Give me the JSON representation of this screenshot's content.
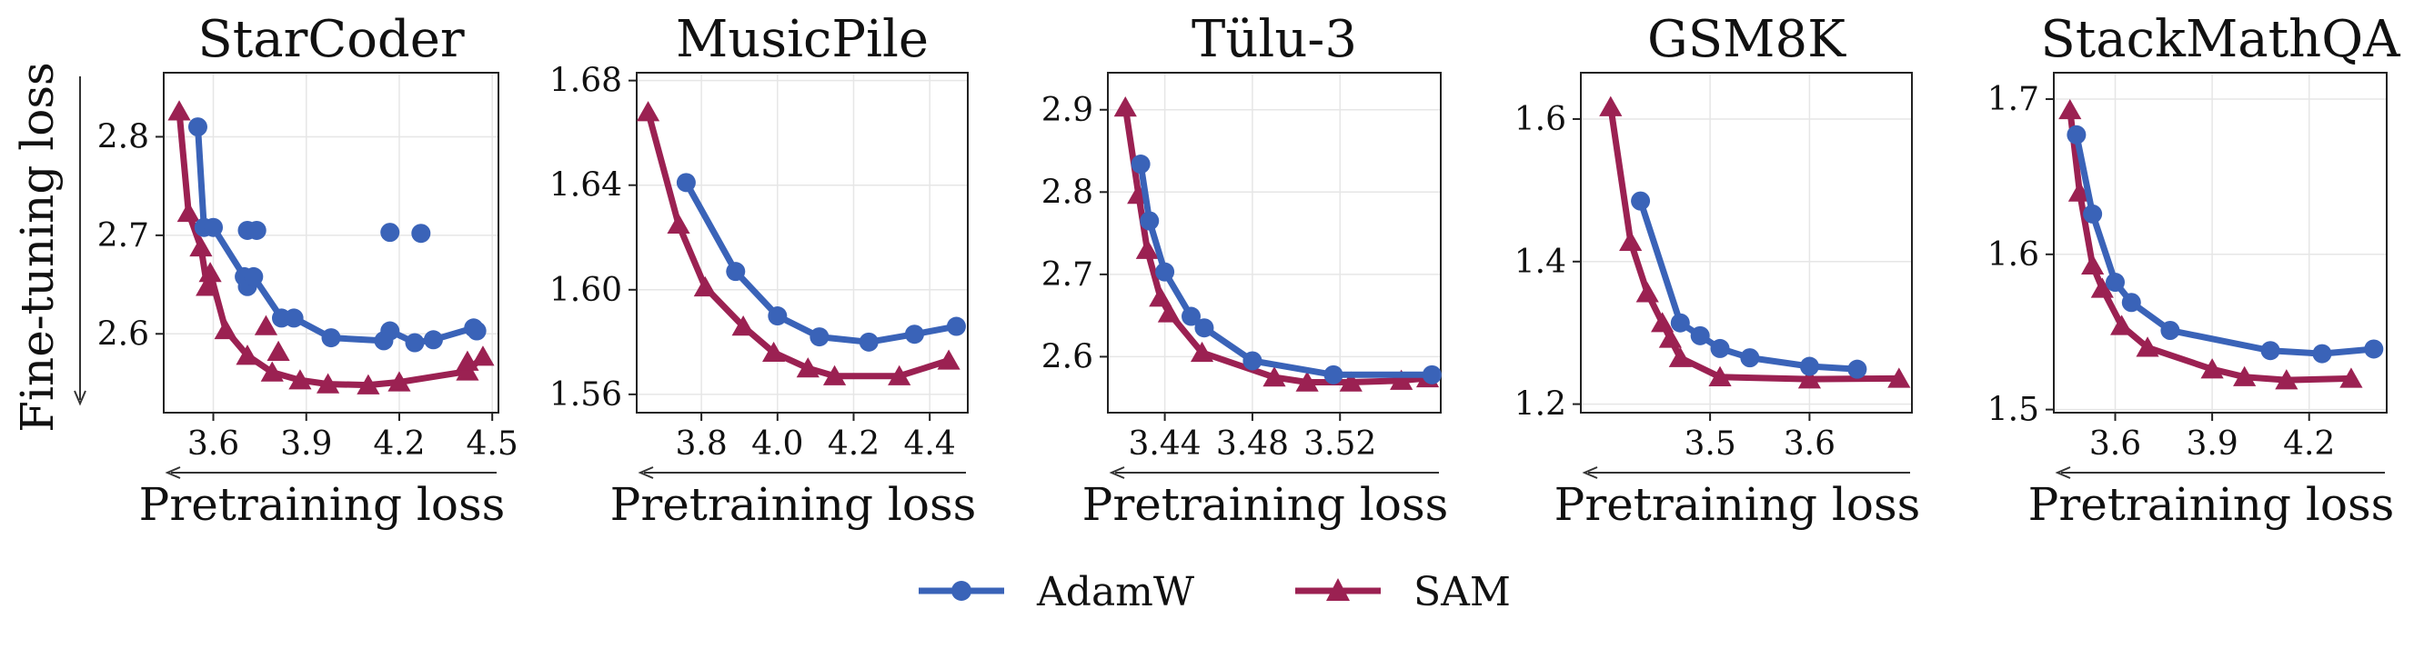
{
  "figure": {
    "ylabel": "Fine-tuning loss",
    "colors": {
      "AdamW": "#3a63b8",
      "SAM": "#9b2152"
    }
  },
  "legend": {
    "items": [
      {
        "name": "AdamW",
        "marker": "circle"
      },
      {
        "name": "SAM",
        "marker": "triangle"
      }
    ]
  },
  "chart_data": [
    {
      "type": "line",
      "title": "StarCoder",
      "xlabel": "Pretraining loss",
      "xlim": [
        3.44,
        4.52
      ],
      "ylim": [
        2.52,
        2.865
      ],
      "xticks": [
        3.6,
        3.9,
        4.2,
        4.5
      ],
      "xtick_labels": [
        "3.6",
        "3.9",
        "4.2",
        "4.5"
      ],
      "yticks": [
        2.6,
        2.7,
        2.8
      ],
      "ytick_labels": [
        "2.6",
        "2.7",
        "2.8"
      ],
      "series": [
        {
          "name": "AdamW",
          "points": [
            [
              3.55,
              2.81
            ],
            [
              3.57,
              2.708
            ],
            [
              3.6,
              2.708
            ],
            [
              3.7,
              2.658
            ],
            [
              3.71,
              2.648
            ],
            [
              3.73,
              2.658
            ],
            [
              3.82,
              2.616
            ],
            [
              3.86,
              2.616
            ],
            [
              3.98,
              2.596
            ],
            [
              4.15,
              2.593
            ],
            [
              4.17,
              2.603
            ],
            [
              4.25,
              2.591
            ],
            [
              4.31,
              2.594
            ],
            [
              4.44,
              2.606
            ],
            [
              4.45,
              2.603
            ]
          ]
        },
        {
          "name": "SAM",
          "points": [
            [
              3.49,
              2.826
            ],
            [
              3.52,
              2.723
            ],
            [
              3.56,
              2.688
            ],
            [
              3.58,
              2.648
            ],
            [
              3.59,
              2.662
            ],
            [
              3.64,
              2.604
            ],
            [
              3.71,
              2.578
            ],
            [
              3.79,
              2.561
            ],
            [
              3.88,
              2.553
            ],
            [
              3.97,
              2.549
            ],
            [
              4.1,
              2.548
            ],
            [
              4.2,
              2.551
            ],
            [
              4.42,
              2.562
            ],
            [
              4.47,
              2.577
            ]
          ]
        }
      ],
      "extra_points": {
        "AdamW": [
          [
            3.71,
            2.705
          ],
          [
            3.74,
            2.705
          ],
          [
            4.17,
            2.703
          ],
          [
            4.27,
            2.702
          ]
        ],
        "SAM": [
          [
            3.77,
            2.608
          ],
          [
            3.81,
            2.582
          ],
          [
            4.42,
            2.572
          ]
        ]
      }
    },
    {
      "type": "line",
      "title": "MusicPile",
      "xlabel": "Pretraining loss",
      "xlim": [
        3.63,
        4.5
      ],
      "ylim": [
        1.553,
        1.683
      ],
      "xticks": [
        3.8,
        4.0,
        4.2,
        4.4
      ],
      "xtick_labels": [
        "3.8",
        "4.0",
        "4.2",
        "4.4"
      ],
      "yticks": [
        1.56,
        1.6,
        1.64,
        1.68
      ],
      "ytick_labels": [
        "1.56",
        "1.60",
        "1.64",
        "1.68"
      ],
      "series": [
        {
          "name": "AdamW",
          "points": [
            [
              3.76,
              1.641
            ],
            [
              3.89,
              1.607
            ],
            [
              4.0,
              1.59
            ],
            [
              4.11,
              1.582
            ],
            [
              4.24,
              1.58
            ],
            [
              4.36,
              1.583
            ],
            [
              4.47,
              1.586
            ]
          ]
        },
        {
          "name": "SAM",
          "points": [
            [
              3.66,
              1.668
            ],
            [
              3.74,
              1.625
            ],
            [
              3.81,
              1.601
            ],
            [
              3.91,
              1.586
            ],
            [
              3.99,
              1.576
            ],
            [
              4.08,
              1.57
            ],
            [
              4.15,
              1.567
            ],
            [
              4.32,
              1.567
            ],
            [
              4.45,
              1.573
            ]
          ]
        }
      ]
    },
    {
      "type": "line",
      "title": "Tülu-3",
      "xlabel": "Pretraining loss",
      "xlim": [
        3.414,
        3.566
      ],
      "ylim": [
        2.532,
        2.945
      ],
      "xticks": [
        3.44,
        3.48,
        3.52
      ],
      "xtick_labels": [
        "3.44",
        "3.48",
        "3.52"
      ],
      "yticks": [
        2.6,
        2.7,
        2.8,
        2.9
      ],
      "ytick_labels": [
        "2.6",
        "2.7",
        "2.8",
        "2.9"
      ],
      "series": [
        {
          "name": "AdamW",
          "points": [
            [
              3.429,
              2.834
            ],
            [
              3.433,
              2.765
            ],
            [
              3.44,
              2.703
            ],
            [
              3.452,
              2.649
            ],
            [
              3.458,
              2.635
            ],
            [
              3.48,
              2.595
            ],
            [
              3.517,
              2.578
            ],
            [
              3.562,
              2.578
            ]
          ]
        },
        {
          "name": "SAM",
          "points": [
            [
              3.422,
              2.903
            ],
            [
              3.428,
              2.797
            ],
            [
              3.432,
              2.73
            ],
            [
              3.438,
              2.672
            ],
            [
              3.442,
              2.653
            ],
            [
              3.457,
              2.605
            ],
            [
              3.49,
              2.575
            ],
            [
              3.505,
              2.569
            ],
            [
              3.525,
              2.569
            ],
            [
              3.548,
              2.571
            ],
            [
              3.56,
              2.574
            ]
          ]
        }
      ]
    },
    {
      "type": "line",
      "title": "GSM8K",
      "xlabel": "Pretraining loss",
      "xlim": [
        3.37,
        3.703
      ],
      "ylim": [
        1.188,
        1.665
      ],
      "xticks": [
        3.5,
        3.6
      ],
      "xtick_labels": [
        "3.5",
        "3.6"
      ],
      "yticks": [
        1.2,
        1.4,
        1.6
      ],
      "ytick_labels": [
        "1.2",
        "1.4",
        "1.6"
      ],
      "series": [
        {
          "name": "AdamW",
          "points": [
            [
              3.43,
              1.485
            ],
            [
              3.47,
              1.314
            ],
            [
              3.49,
              1.296
            ],
            [
              3.51,
              1.278
            ],
            [
              3.54,
              1.265
            ],
            [
              3.6,
              1.253
            ],
            [
              3.648,
              1.249
            ]
          ]
        },
        {
          "name": "SAM",
          "points": [
            [
              3.4,
              1.617
            ],
            [
              3.42,
              1.428
            ],
            [
              3.437,
              1.356
            ],
            [
              3.452,
              1.314
            ],
            [
              3.46,
              1.292
            ],
            [
              3.47,
              1.265
            ],
            [
              3.51,
              1.238
            ],
            [
              3.6,
              1.235
            ],
            [
              3.69,
              1.236
            ]
          ]
        }
      ]
    },
    {
      "type": "line",
      "title": "StackMathQA",
      "xlabel": "Pretraining loss",
      "xlim": [
        3.41,
        4.44
      ],
      "ylim": [
        1.498,
        1.717
      ],
      "xticks": [
        3.6,
        3.9,
        4.2
      ],
      "xtick_labels": [
        "3.6",
        "3.9",
        "4.2"
      ],
      "yticks": [
        1.5,
        1.6,
        1.7
      ],
      "ytick_labels": [
        "1.5",
        "1.6",
        "1.7"
      ],
      "series": [
        {
          "name": "AdamW",
          "points": [
            [
              3.48,
              1.677
            ],
            [
              3.53,
              1.626
            ],
            [
              3.6,
              1.582
            ],
            [
              3.65,
              1.569
            ],
            [
              3.77,
              1.551
            ],
            [
              4.08,
              1.538
            ],
            [
              4.24,
              1.536
            ],
            [
              4.4,
              1.539
            ]
          ]
        },
        {
          "name": "SAM",
          "points": [
            [
              3.46,
              1.693
            ],
            [
              3.49,
              1.64
            ],
            [
              3.53,
              1.593
            ],
            [
              3.56,
              1.578
            ],
            [
              3.62,
              1.554
            ],
            [
              3.7,
              1.54
            ],
            [
              3.9,
              1.526
            ],
            [
              4.0,
              1.521
            ],
            [
              4.13,
              1.519
            ],
            [
              4.33,
              1.52
            ]
          ]
        }
      ]
    }
  ]
}
